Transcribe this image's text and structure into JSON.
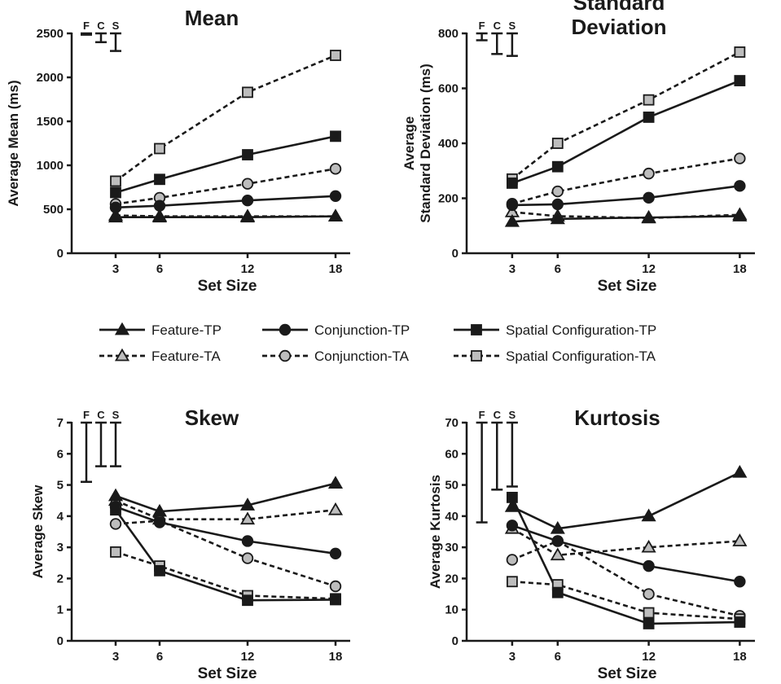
{
  "legend": [
    {
      "name": "Feature-TP",
      "marker": "triangle",
      "fill": "#1a1a1a",
      "dashed": false
    },
    {
      "name": "Conjunction-TP",
      "marker": "circle",
      "fill": "#1a1a1a",
      "dashed": false
    },
    {
      "name": "Spatial Configuration-TP",
      "marker": "square",
      "fill": "#1a1a1a",
      "dashed": false
    },
    {
      "name": "Feature-TA",
      "marker": "triangle",
      "fill": "#bdbdbd",
      "dashed": true
    },
    {
      "name": "Conjunction-TA",
      "marker": "circle",
      "fill": "#bdbdbd",
      "dashed": true
    },
    {
      "name": "Spatial Configuration-TA",
      "marker": "square",
      "fill": "#bdbdbd",
      "dashed": true
    }
  ],
  "chart_data": [
    {
      "type": "line",
      "title": [
        "Mean"
      ],
      "xlabel": "Set Size",
      "ylabel": [
        "Average Mean (ms)"
      ],
      "x": [
        3,
        6,
        12,
        18
      ],
      "xlim": [
        0,
        19
      ],
      "ylim": [
        0,
        2500
      ],
      "yticks": [
        0,
        500,
        1000,
        1500,
        2000,
        2500
      ],
      "error_bar_labels": [
        "F",
        "C",
        "S"
      ],
      "error_bars": [
        {
          "label": "F",
          "x": 1.0,
          "low": 2485,
          "high": 2500
        },
        {
          "label": "C",
          "x": 2.0,
          "low": 2400,
          "high": 2500
        },
        {
          "label": "S",
          "x": 3.0,
          "low": 2300,
          "high": 2500
        }
      ],
      "series": [
        {
          "name": "Feature-TP",
          "values": [
            410,
            410,
            410,
            420
          ]
        },
        {
          "name": "Conjunction-TP",
          "values": [
            520,
            540,
            600,
            650
          ]
        },
        {
          "name": "Spatial Configuration-TP",
          "values": [
            690,
            840,
            1120,
            1330
          ]
        },
        {
          "name": "Feature-TA",
          "values": [
            430,
            420,
            420,
            420
          ]
        },
        {
          "name": "Conjunction-TA",
          "values": [
            560,
            630,
            790,
            960
          ]
        },
        {
          "name": "Spatial Configuration-TA",
          "values": [
            820,
            1190,
            1830,
            2250
          ]
        }
      ]
    },
    {
      "type": "line",
      "title": [
        "Standard",
        "Deviation"
      ],
      "xlabel": "Set Size",
      "ylabel": [
        "Average",
        "Standard Deviation (ms)"
      ],
      "x": [
        3,
        6,
        12,
        18
      ],
      "xlim": [
        0,
        19
      ],
      "ylim": [
        0,
        800
      ],
      "yticks": [
        0,
        200,
        400,
        600,
        800
      ],
      "error_bar_labels": [
        "F",
        "C",
        "S"
      ],
      "error_bars": [
        {
          "label": "F",
          "x": 1.0,
          "low": 775,
          "high": 800
        },
        {
          "label": "C",
          "x": 2.0,
          "low": 725,
          "high": 800
        },
        {
          "label": "S",
          "x": 3.0,
          "low": 718,
          "high": 800
        }
      ],
      "series": [
        {
          "name": "Feature-TP",
          "values": [
            115,
            125,
            130,
            135
          ]
        },
        {
          "name": "Conjunction-TP",
          "values": [
            175,
            178,
            202,
            245
          ]
        },
        {
          "name": "Spatial Configuration-TP",
          "values": [
            255,
            315,
            495,
            628
          ]
        },
        {
          "name": "Feature-TA",
          "values": [
            150,
            135,
            128,
            140
          ]
        },
        {
          "name": "Conjunction-TA",
          "values": [
            180,
            225,
            290,
            345
          ]
        },
        {
          "name": "Spatial Configuration-TA",
          "values": [
            270,
            400,
            558,
            732
          ]
        }
      ]
    },
    {
      "type": "line",
      "title": [
        "Skew"
      ],
      "xlabel": "Set Size",
      "ylabel": [
        "Average Skew"
      ],
      "x": [
        3,
        6,
        12,
        18
      ],
      "xlim": [
        0,
        19
      ],
      "ylim": [
        0,
        7
      ],
      "yticks": [
        0,
        1,
        2,
        3,
        4,
        5,
        6,
        7
      ],
      "error_bar_labels": [
        "F",
        "C",
        "S"
      ],
      "error_bars": [
        {
          "label": "F",
          "x": 1.0,
          "low": 5.1,
          "high": 7.0
        },
        {
          "label": "C",
          "x": 2.0,
          "low": 5.6,
          "high": 7.0
        },
        {
          "label": "S",
          "x": 3.0,
          "low": 5.6,
          "high": 7.0
        }
      ],
      "series": [
        {
          "name": "Feature-TP",
          "values": [
            4.65,
            4.15,
            4.35,
            5.05
          ]
        },
        {
          "name": "Conjunction-TP",
          "values": [
            4.3,
            3.8,
            3.2,
            2.8
          ]
        },
        {
          "name": "Spatial Configuration-TP",
          "values": [
            4.2,
            2.25,
            1.3,
            1.32
          ]
        },
        {
          "name": "Feature-TA",
          "values": [
            4.5,
            3.9,
            3.9,
            4.2
          ]
        },
        {
          "name": "Conjunction-TA",
          "values": [
            3.75,
            3.85,
            2.65,
            1.75
          ]
        },
        {
          "name": "Spatial Configuration-TA",
          "values": [
            2.85,
            2.4,
            1.45,
            1.35
          ]
        }
      ]
    },
    {
      "type": "line",
      "title": [
        "Kurtosis"
      ],
      "xlabel": "Set Size",
      "ylabel": [
        "Average Kurtosis"
      ],
      "x": [
        3,
        6,
        12,
        18
      ],
      "xlim": [
        0,
        19
      ],
      "ylim": [
        0,
        70
      ],
      "yticks": [
        0,
        10,
        20,
        30,
        40,
        50,
        60,
        70
      ],
      "error_bar_labels": [
        "F",
        "C",
        "S"
      ],
      "error_bars": [
        {
          "label": "F",
          "x": 1.0,
          "low": 38,
          "high": 70
        },
        {
          "label": "C",
          "x": 2.0,
          "low": 48.5,
          "high": 70
        },
        {
          "label": "S",
          "x": 3.0,
          "low": 49.5,
          "high": 70
        }
      ],
      "series": [
        {
          "name": "Feature-TP",
          "values": [
            43,
            36,
            40,
            54
          ]
        },
        {
          "name": "Conjunction-TP",
          "values": [
            37,
            32,
            24,
            19
          ]
        },
        {
          "name": "Spatial Configuration-TP",
          "values": [
            46,
            15.5,
            5.5,
            6
          ]
        },
        {
          "name": "Feature-TA",
          "values": [
            36,
            27.5,
            30,
            32
          ]
        },
        {
          "name": "Conjunction-TA",
          "values": [
            26,
            32,
            15,
            8
          ]
        },
        {
          "name": "Spatial Configuration-TA",
          "values": [
            19,
            18,
            9,
            7
          ]
        }
      ]
    }
  ]
}
